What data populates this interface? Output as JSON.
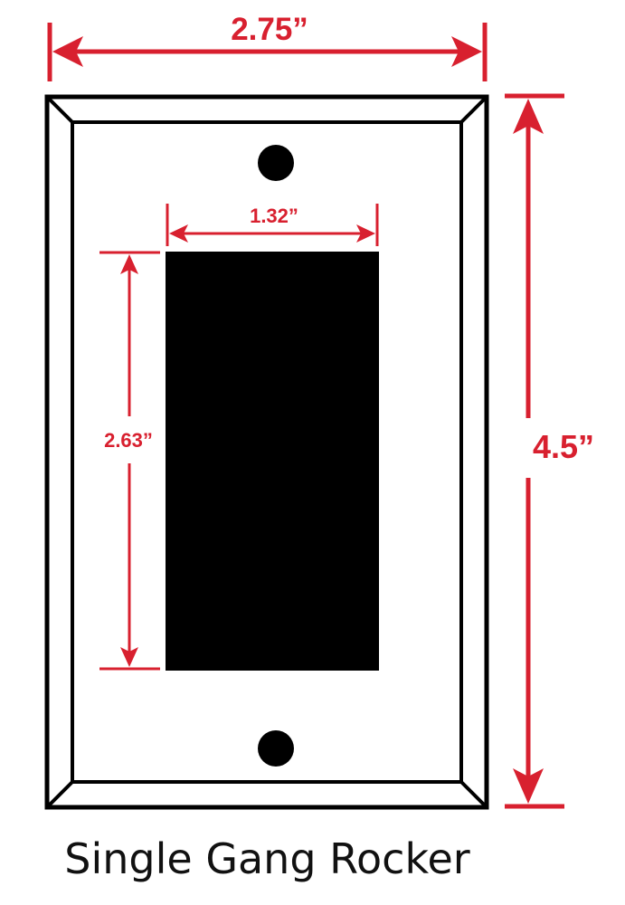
{
  "dimensions": {
    "plate_width": "2.75”",
    "plate_height": "4.5”",
    "opening_width": "1.32”",
    "opening_height": "2.63”"
  },
  "caption": "Single Gang Rocker",
  "colors": {
    "dimension": "#d8202f",
    "outline": "#000000",
    "opening": "#000000",
    "background": "#ffffff"
  }
}
